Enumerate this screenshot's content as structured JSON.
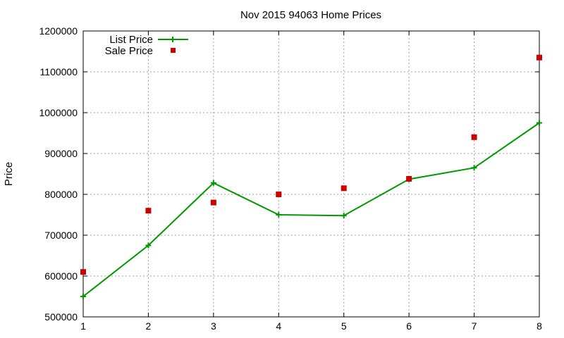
{
  "chart_data": {
    "type": "line",
    "title": "Nov 2015 94063 Home Prices",
    "xlabel": "",
    "ylabel": "Price",
    "xlim": [
      1,
      8
    ],
    "ylim": [
      500000,
      1200000
    ],
    "x_ticks": [
      1,
      2,
      3,
      4,
      5,
      6,
      7,
      8
    ],
    "y_ticks": [
      500000,
      600000,
      700000,
      800000,
      900000,
      1000000,
      1100000,
      1200000
    ],
    "grid": true,
    "legend_position": "top-left",
    "series": [
      {
        "name": "List Price",
        "style": "line-with-plus-markers",
        "color": "#009900",
        "x": [
          1,
          2,
          3,
          4,
          5,
          6,
          7,
          8
        ],
        "values": [
          550000,
          675000,
          828000,
          750000,
          748000,
          837000,
          865000,
          975000
        ]
      },
      {
        "name": "Sale Price",
        "style": "square-markers",
        "color": "#cc0000",
        "x": [
          1,
          2,
          3,
          4,
          5,
          6,
          7,
          8
        ],
        "values": [
          610000,
          760000,
          780000,
          800000,
          815000,
          838000,
          940000,
          1135000
        ]
      }
    ]
  }
}
